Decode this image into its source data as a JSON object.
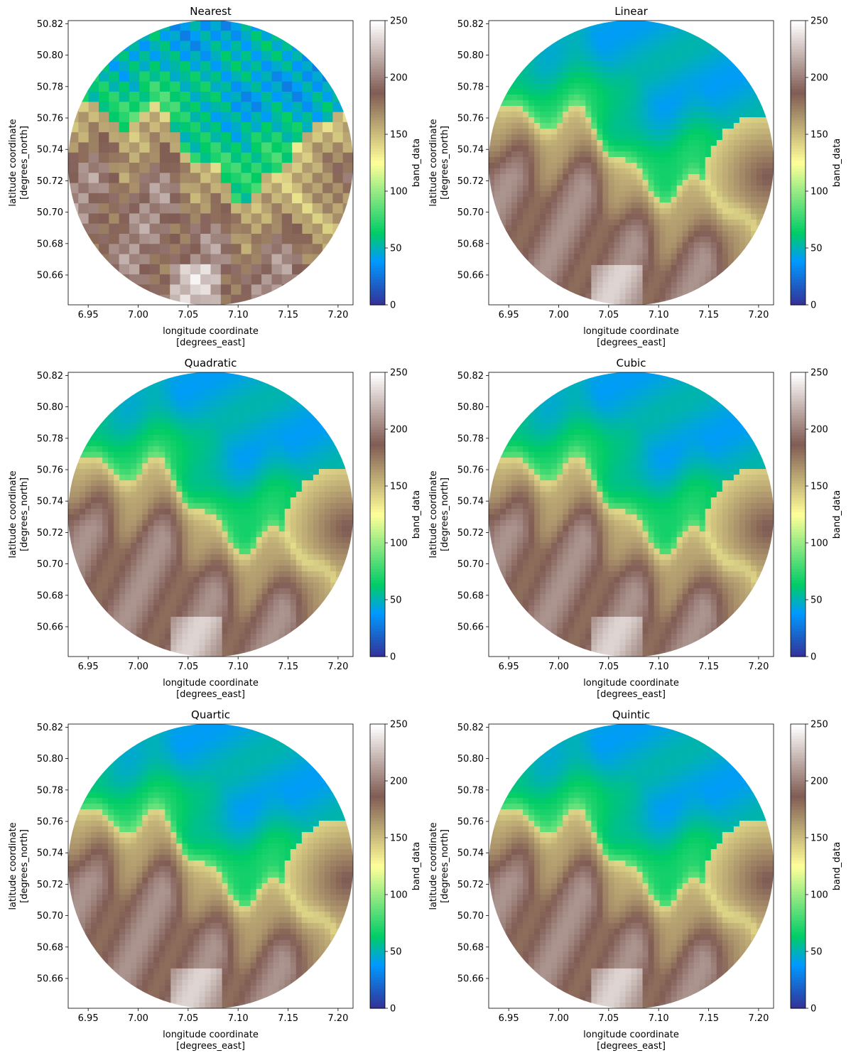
{
  "figure": {
    "colormap": "terrain",
    "colormap_stops": [
      [
        0.0,
        "#333399"
      ],
      [
        0.15,
        "#0099ff"
      ],
      [
        0.25,
        "#00cc66"
      ],
      [
        0.5,
        "#ffff99"
      ],
      [
        0.75,
        "#805c54"
      ],
      [
        1.0,
        "#ffffff"
      ]
    ]
  },
  "chart_data": [
    {
      "type": "heatmap",
      "title": "Nearest",
      "xlabel_line1": "longitude coordinate",
      "xlabel_line2": "[degrees_east]",
      "ylabel_line1": "latitude coordinate",
      "ylabel_line2": "[degrees_north]",
      "xlim": [
        6.93,
        7.215
      ],
      "ylim": [
        50.641,
        50.822
      ],
      "xticks": [
        "6.95",
        "7.00",
        "7.05",
        "7.10",
        "7.15",
        "7.20"
      ],
      "yticks": [
        "50.66",
        "50.68",
        "50.70",
        "50.72",
        "50.74",
        "50.76",
        "50.78",
        "50.80",
        "50.82"
      ],
      "colorbar": {
        "label": "band_data",
        "range": [
          0,
          250
        ],
        "ticks": [
          "0",
          "50",
          "100",
          "150",
          "200",
          "250"
        ]
      }
    },
    {
      "type": "heatmap",
      "title": "Linear",
      "xlabel_line1": "longitude coordinate",
      "xlabel_line2": "[degrees_east]",
      "ylabel_line1": "latitude coordinate",
      "ylabel_line2": "[degrees_north]",
      "xlim": [
        6.93,
        7.215
      ],
      "ylim": [
        50.641,
        50.822
      ],
      "xticks": [
        "6.95",
        "7.00",
        "7.05",
        "7.10",
        "7.15",
        "7.20"
      ],
      "yticks": [
        "50.66",
        "50.68",
        "50.70",
        "50.72",
        "50.74",
        "50.76",
        "50.78",
        "50.80",
        "50.82"
      ],
      "colorbar": {
        "label": "band_data",
        "range": [
          0,
          250
        ],
        "ticks": [
          "0",
          "50",
          "100",
          "150",
          "200",
          "250"
        ]
      }
    },
    {
      "type": "heatmap",
      "title": "Quadratic",
      "xlabel_line1": "longitude coordinate",
      "xlabel_line2": "[degrees_east]",
      "ylabel_line1": "latitude coordinate",
      "ylabel_line2": "[degrees_north]",
      "xlim": [
        6.93,
        7.215
      ],
      "ylim": [
        50.641,
        50.822
      ],
      "xticks": [
        "6.95",
        "7.00",
        "7.05",
        "7.10",
        "7.15",
        "7.20"
      ],
      "yticks": [
        "50.66",
        "50.68",
        "50.70",
        "50.72",
        "50.74",
        "50.76",
        "50.78",
        "50.80",
        "50.82"
      ],
      "colorbar": {
        "label": "band_data",
        "range": [
          0,
          250
        ],
        "ticks": [
          "0",
          "50",
          "100",
          "150",
          "200",
          "250"
        ]
      }
    },
    {
      "type": "heatmap",
      "title": "Cubic",
      "xlabel_line1": "longitude coordinate",
      "xlabel_line2": "[degrees_east]",
      "ylabel_line1": "latitude coordinate",
      "ylabel_line2": "[degrees_north]",
      "xlim": [
        6.93,
        7.215
      ],
      "ylim": [
        50.641,
        50.822
      ],
      "xticks": [
        "6.95",
        "7.00",
        "7.05",
        "7.10",
        "7.15",
        "7.20"
      ],
      "yticks": [
        "50.66",
        "50.68",
        "50.70",
        "50.72",
        "50.74",
        "50.76",
        "50.78",
        "50.80",
        "50.82"
      ],
      "colorbar": {
        "label": "band_data",
        "range": [
          0,
          250
        ],
        "ticks": [
          "0",
          "50",
          "100",
          "150",
          "200",
          "250"
        ]
      }
    },
    {
      "type": "heatmap",
      "title": "Quartic",
      "xlabel_line1": "longitude coordinate",
      "xlabel_line2": "[degrees_east]",
      "ylabel_line1": "latitude coordinate",
      "ylabel_line2": "[degrees_north]",
      "xlim": [
        6.93,
        7.215
      ],
      "ylim": [
        50.641,
        50.822
      ],
      "xticks": [
        "6.95",
        "7.00",
        "7.05",
        "7.10",
        "7.15",
        "7.20"
      ],
      "yticks": [
        "50.66",
        "50.68",
        "50.70",
        "50.72",
        "50.74",
        "50.76",
        "50.78",
        "50.80",
        "50.82"
      ],
      "colorbar": {
        "label": "band_data",
        "range": [
          0,
          250
        ],
        "ticks": [
          "0",
          "50",
          "100",
          "150",
          "200",
          "250"
        ]
      }
    },
    {
      "type": "heatmap",
      "title": "Quintic",
      "xlabel_line1": "longitude coordinate",
      "xlabel_line2": "[degrees_east]",
      "ylabel_line1": "latitude coordinate",
      "ylabel_line2": "[degrees_north]",
      "xlim": [
        6.93,
        7.215
      ],
      "ylim": [
        50.641,
        50.822
      ],
      "xticks": [
        "6.95",
        "7.00",
        "7.05",
        "7.10",
        "7.15",
        "7.20"
      ],
      "yticks": [
        "50.66",
        "50.68",
        "50.70",
        "50.72",
        "50.74",
        "50.76",
        "50.78",
        "50.80",
        "50.82"
      ],
      "colorbar": {
        "label": "band_data",
        "range": [
          0,
          250
        ],
        "ticks": [
          "0",
          "50",
          "100",
          "150",
          "200",
          "250"
        ]
      }
    }
  ]
}
